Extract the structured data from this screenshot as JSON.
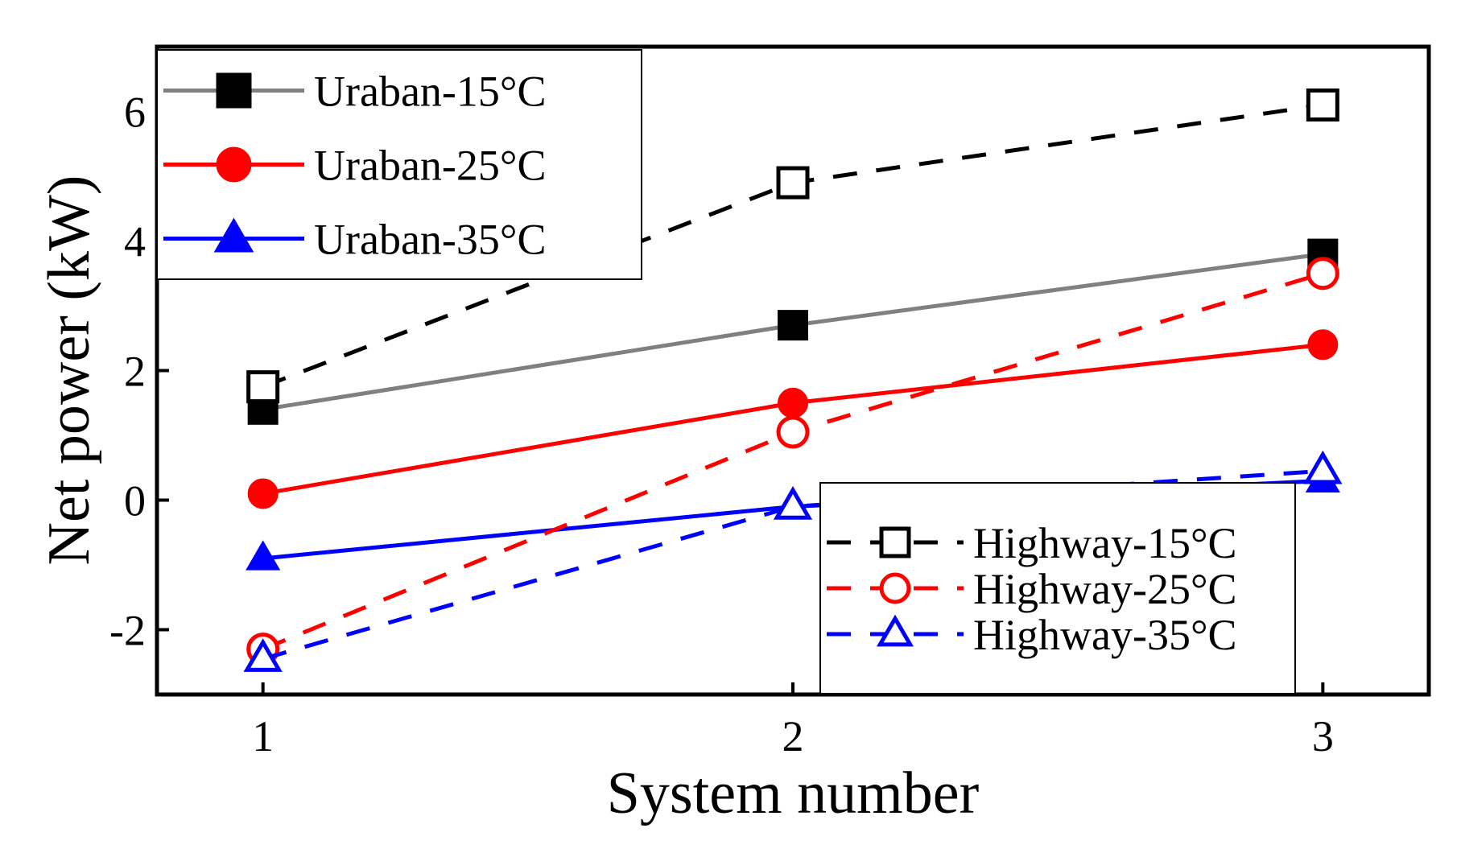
{
  "chart_data": {
    "type": "line",
    "title": "",
    "xlabel": "System number",
    "ylabel": "Net power (kW)",
    "x": [
      1,
      2,
      3
    ],
    "x_tick_labels": [
      "1",
      "2",
      "3"
    ],
    "xlim": [
      0.8,
      3.2
    ],
    "ylim": [
      -3,
      7
    ],
    "y_ticks": [
      -2,
      0,
      2,
      4,
      6
    ],
    "y_tick_labels": [
      "-2",
      "0",
      "2",
      "4",
      "6"
    ],
    "grid": false,
    "series": [
      {
        "name": "Uraban-15°C",
        "values": [
          1.4,
          2.7,
          3.8
        ],
        "color": "#808080",
        "marker": "square",
        "filled": true,
        "line_style": "solid",
        "marker_color": "#000000"
      },
      {
        "name": "Uraban-25°C",
        "values": [
          0.1,
          1.5,
          2.4
        ],
        "color": "#ff0000",
        "marker": "circle",
        "filled": true,
        "line_style": "solid",
        "marker_color": "#ff0000"
      },
      {
        "name": "Uraban-35°C",
        "values": [
          -0.9,
          -0.1,
          0.3
        ],
        "color": "#0000ff",
        "marker": "triangle",
        "filled": true,
        "line_style": "solid",
        "marker_color": "#0000ff"
      },
      {
        "name": "Highway-15°C",
        "values": [
          1.75,
          4.9,
          6.1
        ],
        "color": "#000000",
        "marker": "square",
        "filled": false,
        "line_style": "dashed",
        "marker_color": "#000000"
      },
      {
        "name": "Highway-25°C",
        "values": [
          -2.3,
          1.05,
          3.5
        ],
        "color": "#ff0000",
        "marker": "circle",
        "filled": false,
        "line_style": "dashed",
        "marker_color": "#ff0000"
      },
      {
        "name": "Highway-35°C",
        "values": [
          -2.45,
          -0.1,
          0.45
        ],
        "color": "#0000ff",
        "marker": "triangle",
        "filled": false,
        "line_style": "dashed",
        "marker_color": "#0000ff"
      }
    ],
    "legends": [
      {
        "placement": "top-left",
        "series_names": [
          "Uraban-15°C",
          "Uraban-25°C",
          "Uraban-35°C"
        ]
      },
      {
        "placement": "bottom-right",
        "series_names": [
          "Highway-15°C",
          "Highway-25°C",
          "Highway-35°C"
        ]
      }
    ]
  }
}
